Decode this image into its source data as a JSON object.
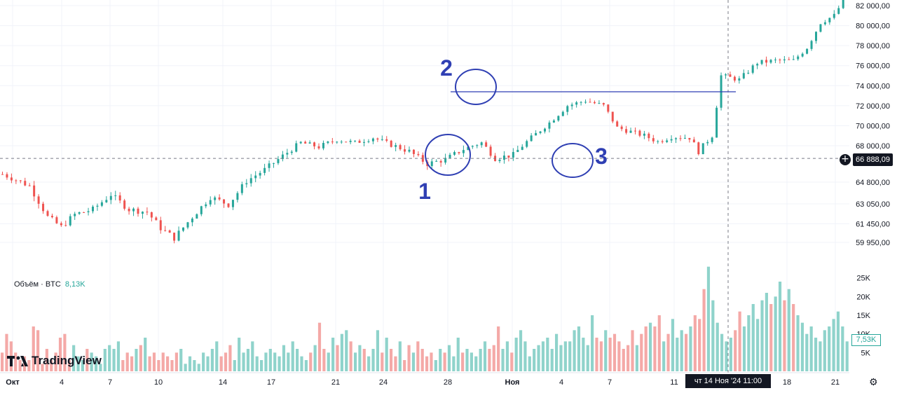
{
  "chart_data": {
    "type": "candlestick",
    "title": "",
    "instrument": "BTC",
    "price_axis": {
      "ticks": [
        "82 000,00",
        "80 000,00",
        "78 000,00",
        "76 000,00",
        "74 000,00",
        "72 000,00",
        "70 000,00",
        "68 000,00",
        "64 800,00",
        "63 050,00",
        "61 450,00",
        "59 950,00"
      ],
      "range": [
        59000,
        82800
      ],
      "current_price": "66 888,09",
      "current_value": 66888
    },
    "volume_axis": {
      "label": "Объём · BTC",
      "value": "8,13K",
      "ticks": [
        "25K",
        "20K",
        "15K",
        "10K",
        "5K"
      ],
      "current_value": "7,53K"
    },
    "x_axis": {
      "ticks": [
        "Окт",
        "4",
        "7",
        "10",
        "14",
        "17",
        "21",
        "24",
        "28",
        "Ноя",
        "4",
        "7",
        "11",
        "18",
        "21"
      ],
      "crosshair_label": "чт 14 Ноя '24    11:00"
    },
    "price_path": [
      [
        0,
        65500
      ],
      [
        6,
        64500
      ],
      [
        10,
        62000
      ],
      [
        13,
        61200
      ],
      [
        16,
        62200
      ],
      [
        20,
        62600
      ],
      [
        24,
        63800
      ],
      [
        28,
        62600
      ],
      [
        32,
        62400
      ],
      [
        35,
        61100
      ],
      [
        38,
        60300
      ],
      [
        42,
        62000
      ],
      [
        46,
        63600
      ],
      [
        50,
        63000
      ],
      [
        54,
        64900
      ],
      [
        58,
        65900
      ],
      [
        62,
        67100
      ],
      [
        66,
        68300
      ],
      [
        70,
        67900
      ],
      [
        74,
        68600
      ],
      [
        78,
        68300
      ],
      [
        82,
        68800
      ],
      [
        86,
        68100
      ],
      [
        90,
        67500
      ],
      [
        94,
        66400
      ],
      [
        98,
        66800
      ],
      [
        102,
        67700
      ],
      [
        106,
        68300
      ],
      [
        109,
        66900
      ],
      [
        113,
        67200
      ],
      [
        117,
        68800
      ],
      [
        121,
        70300
      ],
      [
        125,
        72000
      ],
      [
        129,
        72500
      ],
      [
        133,
        72000
      ],
      [
        136,
        69800
      ],
      [
        139,
        69400
      ],
      [
        142,
        69000
      ],
      [
        145,
        68400
      ],
      [
        148,
        68900
      ],
      [
        152,
        68800
      ],
      [
        154,
        67500
      ],
      [
        157,
        69000
      ],
      [
        159,
        75000
      ],
      [
        163,
        74600
      ],
      [
        167,
        76300
      ],
      [
        171,
        76500
      ],
      [
        175,
        76500
      ],
      [
        178,
        77800
      ],
      [
        181,
        80300
      ],
      [
        184,
        81000
      ],
      [
        186,
        82500
      ]
    ],
    "volume_values": [
      5,
      10,
      8,
      5,
      3,
      4,
      3,
      12,
      11,
      2,
      6,
      3,
      5,
      9,
      10,
      3,
      7,
      4,
      3,
      6,
      5,
      4,
      2,
      6,
      7,
      6,
      8,
      3,
      5,
      4,
      6,
      7,
      9,
      4,
      5,
      3,
      5,
      4,
      3,
      5,
      6,
      2,
      4,
      3,
      2,
      5,
      4,
      6,
      8,
      4,
      5,
      7,
      3,
      9,
      5,
      6,
      8,
      4,
      3,
      5,
      6,
      5,
      4,
      7,
      5,
      8,
      6,
      4,
      3,
      5,
      7,
      13,
      6,
      5,
      9,
      7,
      10,
      11,
      8,
      5,
      7,
      6,
      4,
      6,
      11,
      5,
      9,
      6,
      4,
      8,
      3,
      7,
      5,
      8,
      6,
      4,
      5,
      3,
      6,
      5,
      7,
      4,
      9,
      5,
      6,
      5,
      4,
      6,
      8,
      6,
      7,
      12,
      6,
      8,
      5,
      9,
      11,
      8,
      4,
      6,
      7,
      8,
      9,
      6,
      10,
      7,
      8,
      8,
      11,
      12,
      9,
      7,
      15,
      9,
      8,
      11,
      9,
      10,
      8,
      6,
      7,
      11,
      7,
      10,
      12,
      13,
      12,
      15,
      8,
      10,
      14,
      9,
      11,
      10,
      12,
      15,
      14,
      22,
      28,
      19,
      13,
      10,
      8,
      9,
      11,
      16,
      12,
      15,
      18,
      14,
      19,
      21,
      18,
      20,
      24,
      19,
      22,
      18,
      15,
      13,
      10,
      12,
      9,
      8,
      11,
      12,
      14,
      16,
      12,
      8
    ],
    "horizontal_line": 73200,
    "annotations": [
      "1",
      "2",
      "3"
    ]
  },
  "branding": {
    "logo_text": "TradingView"
  },
  "colors": {
    "up": "#26a69a",
    "down": "#ef5350",
    "annotation": "#2f3fb3"
  }
}
